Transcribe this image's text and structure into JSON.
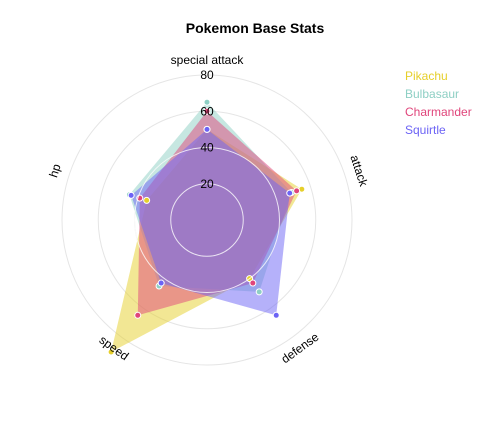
{
  "chart_data": {
    "type": "radar",
    "title": "Pokemon Base Stats",
    "axes": [
      "attack",
      "defense",
      "speed",
      "hp",
      "special attack"
    ],
    "r_max": 80,
    "r_ticks": [
      20,
      40,
      60,
      80
    ],
    "grid": true,
    "legend_position": "top-right",
    "series": [
      {
        "name": "Pikachu",
        "color": "#e6cf2a",
        "values": [
          55,
          40,
          90,
          35,
          50
        ]
      },
      {
        "name": "Bulbasaur",
        "color": "#8ecfc4",
        "values": [
          49,
          49,
          45,
          45,
          65
        ]
      },
      {
        "name": "Charmander",
        "color": "#e0457b",
        "values": [
          52,
          43,
          65,
          39,
          60
        ]
      },
      {
        "name": "Squirtle",
        "color": "#6c63f5",
        "values": [
          48,
          65,
          43,
          44,
          50
        ]
      }
    ]
  }
}
